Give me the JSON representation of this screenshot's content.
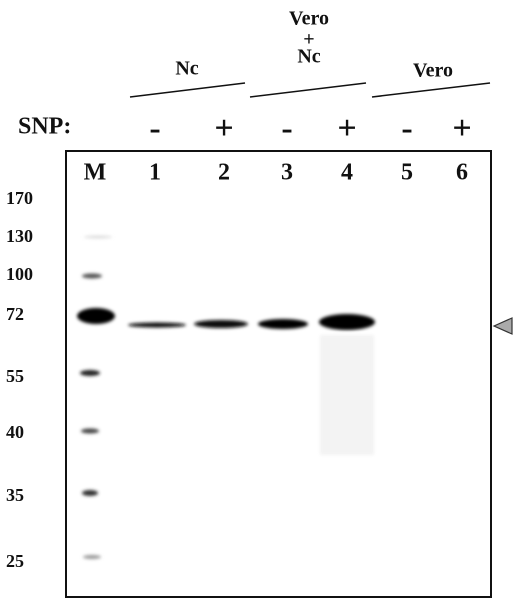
{
  "groups": [
    {
      "label": "Nc"
    },
    {
      "label_top": "Vero",
      "label_mid": "+",
      "label_bottom": "Nc"
    },
    {
      "label": "Vero"
    }
  ],
  "snp": {
    "label": "SNP:",
    "signs": [
      "-",
      "+",
      "-",
      "+",
      "-",
      "+"
    ]
  },
  "lanes": [
    "M",
    "1",
    "2",
    "3",
    "4",
    "5",
    "6"
  ],
  "markers": [
    "170",
    "130",
    "100",
    "72",
    "55",
    "40",
    "35",
    "25"
  ]
}
